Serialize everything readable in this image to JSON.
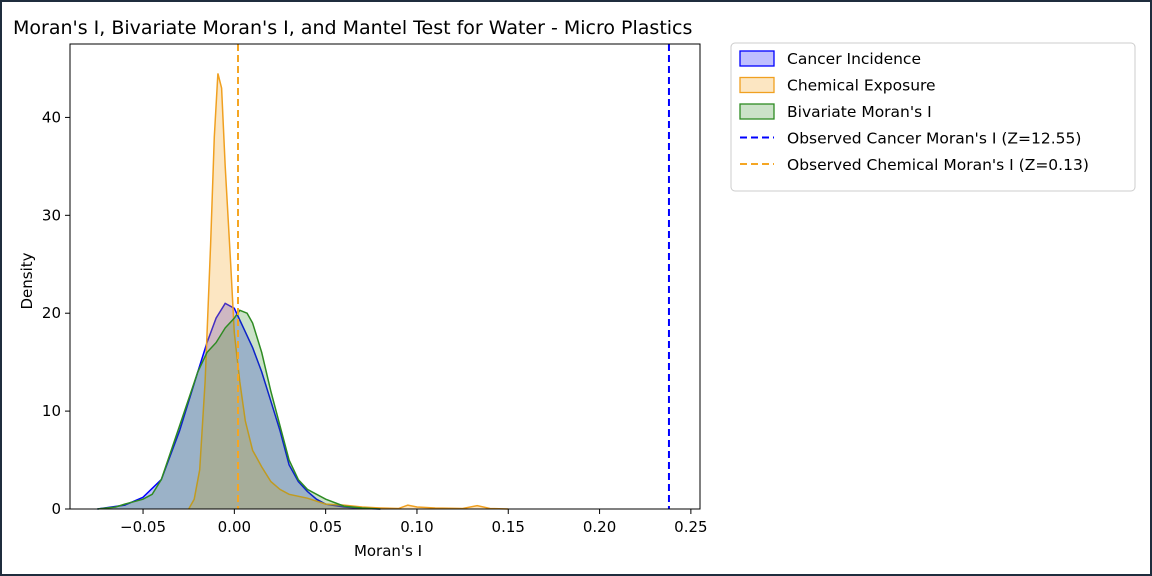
{
  "chart_data": {
    "type": "area",
    "title": "Moran's I, Bivariate Moran's I, and Mantel Test for Water - Micro Plastics",
    "xlabel": "Moran's I",
    "ylabel": "Density",
    "xlim": [
      -0.09,
      0.255
    ],
    "ylim": [
      0,
      47.5
    ],
    "x_ticks": [
      -0.05,
      0.0,
      0.05,
      0.1,
      0.15,
      0.2,
      0.25
    ],
    "x_tick_labels": [
      "−0.05",
      "0.00",
      "0.05",
      "0.10",
      "0.15",
      "0.20",
      "0.25"
    ],
    "y_ticks": [
      0,
      10,
      20,
      30,
      40
    ],
    "y_tick_labels": [
      "0",
      "10",
      "20",
      "30",
      "40"
    ],
    "grid": false,
    "legend_position": "outside-right",
    "series": [
      {
        "name": "Cancer Incidence",
        "kind": "kde",
        "line_color": "#0000ff",
        "fill_color": "#0000ff",
        "fill_opacity": 0.25,
        "points": [
          [
            -0.075,
            0
          ],
          [
            -0.06,
            0.4
          ],
          [
            -0.05,
            1.2
          ],
          [
            -0.04,
            3
          ],
          [
            -0.03,
            8
          ],
          [
            -0.02,
            14
          ],
          [
            -0.015,
            17
          ],
          [
            -0.01,
            19.5
          ],
          [
            -0.005,
            21
          ],
          [
            0,
            20.5
          ],
          [
            0.005,
            18.5
          ],
          [
            0.01,
            16.5
          ],
          [
            0.015,
            14
          ],
          [
            0.02,
            11
          ],
          [
            0.025,
            8
          ],
          [
            0.03,
            4.5
          ],
          [
            0.035,
            2.8
          ],
          [
            0.04,
            1.8
          ],
          [
            0.045,
            1
          ],
          [
            0.05,
            0.5
          ],
          [
            0.06,
            0.2
          ],
          [
            0.07,
            0.05
          ],
          [
            0.08,
            0
          ]
        ]
      },
      {
        "name": "Chemical Exposure",
        "kind": "kde",
        "line_color": "#f0a020",
        "fill_color": "#f5a623",
        "fill_opacity": 0.28,
        "points": [
          [
            -0.025,
            0
          ],
          [
            -0.022,
            1
          ],
          [
            -0.019,
            4
          ],
          [
            -0.016,
            13
          ],
          [
            -0.013,
            27
          ],
          [
            -0.011,
            38
          ],
          [
            -0.009,
            44.5
          ],
          [
            -0.007,
            43
          ],
          [
            -0.005,
            35
          ],
          [
            -0.002,
            25
          ],
          [
            0,
            18
          ],
          [
            0.003,
            13
          ],
          [
            0.006,
            9
          ],
          [
            0.01,
            6
          ],
          [
            0.015,
            4.3
          ],
          [
            0.02,
            2.8
          ],
          [
            0.025,
            2
          ],
          [
            0.03,
            1.5
          ],
          [
            0.04,
            1.1
          ],
          [
            0.05,
            0.5
          ],
          [
            0.06,
            0.4
          ],
          [
            0.07,
            0.2
          ],
          [
            0.08,
            0.1
          ],
          [
            0.09,
            0.05
          ],
          [
            0.095,
            0.4
          ],
          [
            0.1,
            0.2
          ],
          [
            0.11,
            0.1
          ],
          [
            0.125,
            0.05
          ],
          [
            0.133,
            0.35
          ],
          [
            0.14,
            0.05
          ],
          [
            0.15,
            0
          ]
        ]
      },
      {
        "name": "Bivariate Moran's I",
        "kind": "kde",
        "line_color": "#2e8b22",
        "fill_color": "#2e8b22",
        "fill_opacity": 0.25,
        "points": [
          [
            -0.075,
            0
          ],
          [
            -0.065,
            0.2
          ],
          [
            -0.06,
            0.5
          ],
          [
            -0.05,
            1
          ],
          [
            -0.045,
            1.5
          ],
          [
            -0.04,
            3
          ],
          [
            -0.03,
            8.5
          ],
          [
            -0.02,
            14
          ],
          [
            -0.015,
            16
          ],
          [
            -0.01,
            17
          ],
          [
            -0.005,
            18.5
          ],
          [
            0,
            19.5
          ],
          [
            0.003,
            20.3
          ],
          [
            0.007,
            20
          ],
          [
            0.01,
            19
          ],
          [
            0.015,
            16
          ],
          [
            0.02,
            12
          ],
          [
            0.025,
            8.5
          ],
          [
            0.03,
            5
          ],
          [
            0.035,
            3
          ],
          [
            0.04,
            2
          ],
          [
            0.05,
            1
          ],
          [
            0.06,
            0.3
          ],
          [
            0.07,
            0.1
          ],
          [
            0.08,
            0
          ]
        ]
      }
    ],
    "reference_lines": [
      {
        "name": "Observed Cancer Moran's I (Z=12.55)",
        "x": 0.238,
        "color": "#0000ff",
        "style": "dashed"
      },
      {
        "name": "Observed Chemical Moran's I (Z=0.13)",
        "x": 0.002,
        "color": "#f5a623",
        "style": "dashed"
      }
    ]
  }
}
